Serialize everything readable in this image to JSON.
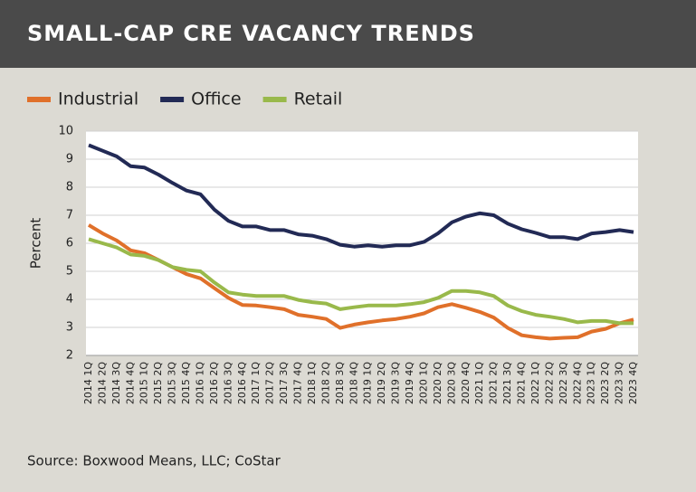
{
  "chart_data": {
    "type": "line",
    "title": "SMALL-CAP CRE VACANCY TRENDS",
    "y_label": "Percent",
    "source": "Source: Boxwood Means, LLC; CoStar",
    "categories": [
      "2014 1Q",
      "2014 2Q",
      "2014 3Q",
      "2014 4Q",
      "2015 1Q",
      "2015 2Q",
      "2015 3Q",
      "2015 4Q",
      "2016 1Q",
      "2016 2Q",
      "2016 3Q",
      "2016 4Q",
      "2017 1Q",
      "2017 2Q",
      "2017 3Q",
      "2017 4Q",
      "2018 1Q",
      "2018 2Q",
      "2018 3Q",
      "2018 4Q",
      "2019 1Q",
      "2019 2Q",
      "2019 3Q",
      "2019 4Q",
      "2020 1Q",
      "2020 2Q",
      "2020 3Q",
      "2020 4Q",
      "2021 1Q",
      "2021 2Q",
      "2021 3Q",
      "2021 4Q",
      "2022 1Q",
      "2022 2Q",
      "2022 3Q",
      "2022 4Q",
      "2023 1Q",
      "2023 2Q",
      "2023 3Q",
      "2023 4Q"
    ],
    "series": [
      {
        "name": "Industrial",
        "color": "#e0702a",
        "values": [
          6.65,
          6.35,
          6.1,
          5.75,
          5.65,
          5.4,
          5.15,
          4.9,
          4.75,
          4.4,
          4.05,
          3.8,
          3.78,
          3.72,
          3.65,
          3.45,
          3.38,
          3.3,
          2.98,
          3.1,
          3.18,
          3.25,
          3.3,
          3.38,
          3.5,
          3.72,
          3.83,
          3.7,
          3.55,
          3.35,
          2.98,
          2.72,
          2.65,
          2.6,
          2.63,
          2.65,
          2.85,
          2.95,
          3.15,
          3.28
        ]
      },
      {
        "name": "Office",
        "color": "#222a55",
        "values": [
          9.5,
          9.3,
          9.1,
          8.75,
          8.7,
          8.45,
          8.15,
          7.88,
          7.75,
          7.2,
          6.8,
          6.6,
          6.6,
          6.47,
          6.47,
          6.32,
          6.27,
          6.15,
          5.95,
          5.88,
          5.93,
          5.88,
          5.93,
          5.93,
          6.05,
          6.35,
          6.75,
          6.95,
          7.07,
          7.0,
          6.7,
          6.5,
          6.37,
          6.22,
          6.22,
          6.15,
          6.35,
          6.4,
          6.47,
          6.4
        ]
      },
      {
        "name": "Retail",
        "color": "#99b94b",
        "values": [
          6.15,
          6.0,
          5.85,
          5.6,
          5.55,
          5.4,
          5.15,
          5.05,
          5.0,
          4.6,
          4.25,
          4.17,
          4.12,
          4.12,
          4.12,
          3.98,
          3.9,
          3.85,
          3.65,
          3.72,
          3.78,
          3.78,
          3.78,
          3.83,
          3.9,
          4.05,
          4.3,
          4.3,
          4.25,
          4.12,
          3.78,
          3.58,
          3.45,
          3.38,
          3.3,
          3.18,
          3.23,
          3.23,
          3.15,
          3.15
        ]
      }
    ],
    "ylim": [
      2,
      10
    ],
    "yticks": [
      2,
      3,
      4,
      5,
      6,
      7,
      8,
      9,
      10
    ],
    "grid": true,
    "legend": "top-left"
  }
}
